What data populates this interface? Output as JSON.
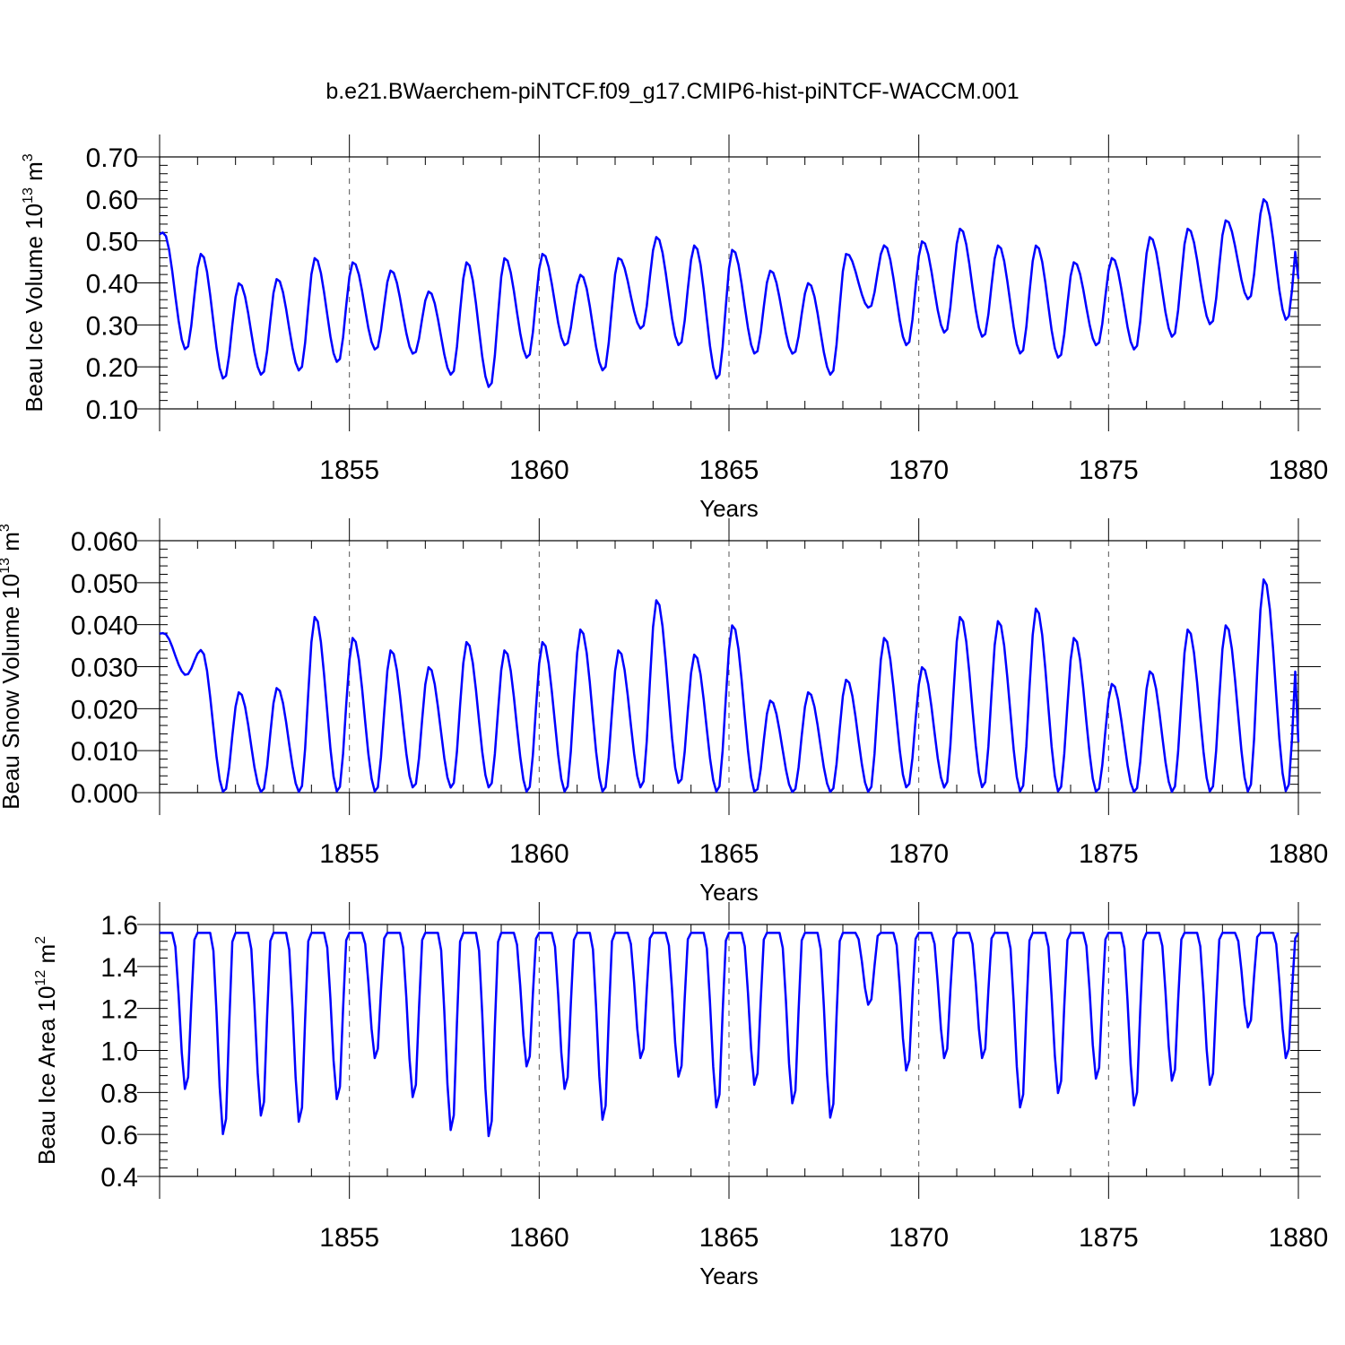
{
  "figure": {
    "title": "b.e21.BWaerchem-piNTCF.f09_g17.CMIP6-hist-piNTCF-WACCM.001"
  },
  "chart_data": [
    {
      "type": "line",
      "name": "ice-volume",
      "ylabel": "Beau Ice Volume 10",
      "ylabel_sup": "13",
      "ylabel_unit": "m",
      "ylabel_unit_sup": "3",
      "xlabel": "Years",
      "xlim": [
        1850,
        1880
      ],
      "ylim": [
        0.1,
        0.7
      ],
      "x_ticks": [
        1855,
        1860,
        1865,
        1870,
        1875,
        1880
      ],
      "x_tick_labels": [
        "1855",
        "1860",
        "1865",
        "1870",
        "1875",
        "1880"
      ],
      "y_ticks": [
        0.1,
        0.2,
        0.3,
        0.4,
        0.5,
        0.6,
        0.7
      ],
      "y_tick_labels": [
        "0.10",
        "0.20",
        "0.30",
        "0.40",
        "0.50",
        "0.60",
        "0.70"
      ],
      "y_minor": 0.02,
      "grid_x": true,
      "series": [
        {
          "name": "Beau Ice Volume",
          "color": "#0000ff",
          "maxima": [
            0.52,
            0.47,
            0.4,
            0.41,
            0.46,
            0.45,
            0.43,
            0.38,
            0.45,
            0.46,
            0.47,
            0.42,
            0.46,
            0.51,
            0.49,
            0.48,
            0.43,
            0.4,
            0.47,
            0.49,
            0.5,
            0.53,
            0.49,
            0.49,
            0.45,
            0.46,
            0.51,
            0.53,
            0.55,
            0.6
          ],
          "minima": [
            0.24,
            0.17,
            0.18,
            0.19,
            0.21,
            0.24,
            0.23,
            0.18,
            0.15,
            0.22,
            0.25,
            0.19,
            0.29,
            0.25,
            0.17,
            0.23,
            0.23,
            0.18,
            0.34,
            0.25,
            0.28,
            0.27,
            0.23,
            0.22,
            0.25,
            0.24,
            0.27,
            0.3,
            0.36,
            0.31
          ],
          "end_value": 0.41
        }
      ]
    },
    {
      "type": "line",
      "name": "snow-volume",
      "ylabel": "Beau Snow Volume 10",
      "ylabel_sup": "13",
      "ylabel_unit": "m",
      "ylabel_unit_sup": "3",
      "xlabel": "Years",
      "xlim": [
        1850,
        1880
      ],
      "ylim": [
        0.0,
        0.06
      ],
      "x_ticks": [
        1855,
        1860,
        1865,
        1870,
        1875,
        1880
      ],
      "x_tick_labels": [
        "1855",
        "1860",
        "1865",
        "1870",
        "1875",
        "1880"
      ],
      "y_ticks": [
        0.0,
        0.01,
        0.02,
        0.03,
        0.04,
        0.05,
        0.06
      ],
      "y_tick_labels": [
        "0.000",
        "0.010",
        "0.020",
        "0.030",
        "0.040",
        "0.050",
        "0.060"
      ],
      "y_minor": 0.002,
      "grid_x": true,
      "series": [
        {
          "name": "Beau Snow Volume",
          "color": "#0000ff",
          "maxima": [
            0.038,
            0.034,
            0.024,
            0.025,
            0.042,
            0.037,
            0.034,
            0.03,
            0.036,
            0.034,
            0.036,
            0.039,
            0.034,
            0.046,
            0.033,
            0.04,
            0.022,
            0.024,
            0.027,
            0.037,
            0.03,
            0.042,
            0.041,
            0.044,
            0.037,
            0.026,
            0.029,
            0.039,
            0.04,
            0.051
          ],
          "minima": [
            0.028,
            0.0,
            0.0,
            0.0,
            0.0,
            0.0,
            0.001,
            0.001,
            0.001,
            0.0,
            0.0,
            0.0,
            0.001,
            0.002,
            0.0,
            0.0,
            0.0,
            0.0,
            0.0,
            0.001,
            0.001,
            0.001,
            0.0,
            0.0,
            0.0,
            0.0,
            0.0,
            0.0,
            0.0,
            0.0
          ],
          "end_value": 0.012
        }
      ]
    },
    {
      "type": "line",
      "name": "ice-area",
      "ylabel": "Beau Ice Area 10",
      "ylabel_sup": "12",
      "ylabel_unit": "m",
      "ylabel_unit_sup": "2",
      "xlabel": "Years",
      "xlim": [
        1850,
        1880
      ],
      "ylim": [
        0.4,
        1.6
      ],
      "x_ticks": [
        1855,
        1860,
        1865,
        1870,
        1875,
        1880
      ],
      "x_tick_labels": [
        "1855",
        "1860",
        "1865",
        "1870",
        "1875",
        "1880"
      ],
      "y_ticks": [
        0.4,
        0.6,
        0.8,
        1.0,
        1.2,
        1.4,
        1.6
      ],
      "y_tick_labels": [
        "0.4",
        "0.6",
        "0.8",
        "1.0",
        "1.2",
        "1.4",
        "1.6"
      ],
      "y_minor": 0.04,
      "grid_x": true,
      "series": [
        {
          "name": "Beau Ice Area",
          "color": "#0000ff",
          "maxima": [
            1.56,
            1.56,
            1.56,
            1.56,
            1.56,
            1.56,
            1.56,
            1.56,
            1.56,
            1.56,
            1.56,
            1.56,
            1.56,
            1.56,
            1.56,
            1.56,
            1.56,
            1.56,
            1.56,
            1.56,
            1.56,
            1.56,
            1.56,
            1.56,
            1.56,
            1.56,
            1.56,
            1.56,
            1.56,
            1.56
          ],
          "minima": [
            0.8,
            0.58,
            0.67,
            0.64,
            0.75,
            0.95,
            0.76,
            0.6,
            0.57,
            0.91,
            0.8,
            0.65,
            0.95,
            0.86,
            0.71,
            0.82,
            0.73,
            0.66,
            1.21,
            0.89,
            0.95,
            0.95,
            0.71,
            0.78,
            0.85,
            0.72,
            0.84,
            0.82,
            1.1,
            0.95
          ],
          "end_value": 1.56
        }
      ]
    }
  ]
}
